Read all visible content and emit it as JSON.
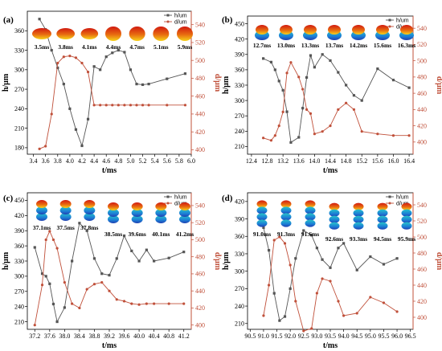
{
  "colors": {
    "h_series": "#555555",
    "d_series": "#c0503a",
    "axis": "#000000",
    "d_axis": "#c0503a"
  },
  "chart_data": [
    {
      "type": "line",
      "panel_label": "(a)",
      "xlabel": "t/ms",
      "ylabel_left": "h/μm",
      "ylabel_right": "d/μm",
      "xlim": [
        3.3,
        6.0
      ],
      "xticks": [
        "3.4",
        "3.6",
        "3.8",
        "4.0",
        "4.2",
        "4.4",
        "4.6",
        "4.8",
        "5.0",
        "5.2",
        "5.4",
        "5.6",
        "5.8",
        "6.0"
      ],
      "xtick_values": [
        3.4,
        3.6,
        3.8,
        4.0,
        4.2,
        4.4,
        4.6,
        4.8,
        5.0,
        5.2,
        5.4,
        5.6,
        5.8,
        6.0
      ],
      "ylim_left": [
        170,
        390
      ],
      "yticks_left": [
        "180",
        "210",
        "240",
        "270",
        "300",
        "330",
        "360"
      ],
      "ytick_values_left": [
        180,
        210,
        240,
        270,
        300,
        330,
        360
      ],
      "ylim_right": [
        395,
        555
      ],
      "yticks_right": [
        "400",
        "420",
        "440",
        "460",
        "480",
        "500",
        "520",
        "540"
      ],
      "ytick_values_right": [
        400,
        420,
        440,
        460,
        480,
        500,
        520,
        540
      ],
      "legend": [
        {
          "name": "h/um"
        },
        {
          "name": "d/um"
        }
      ],
      "series": [
        {
          "name": "h/um",
          "axis": "left",
          "marker": "square",
          "x": [
            3.5,
            3.6,
            3.7,
            3.8,
            3.9,
            4.0,
            4.1,
            4.2,
            4.3,
            4.4,
            4.5,
            4.6,
            4.7,
            4.8,
            4.9,
            5.0,
            5.1,
            5.2,
            5.3,
            5.6,
            5.9
          ],
          "y": [
            378,
            362,
            330,
            303,
            278,
            240,
            208,
            183,
            224,
            305,
            300,
            320,
            326,
            330,
            327,
            300,
            278,
            277,
            278,
            286,
            294
          ]
        },
        {
          "name": "d/um",
          "axis": "right",
          "marker": "circle",
          "x": [
            3.5,
            3.6,
            3.7,
            3.8,
            3.9,
            4.0,
            4.1,
            4.2,
            4.3,
            4.4,
            4.5,
            4.6,
            4.7,
            4.8,
            4.9,
            5.0,
            5.1,
            5.2,
            5.3,
            5.6,
            5.9
          ],
          "y": [
            401,
            404,
            440,
            497,
            504,
            505,
            503,
            497,
            487,
            450,
            450,
            450,
            450,
            450,
            450,
            450,
            450,
            450,
            450,
            450,
            450
          ]
        }
      ],
      "snapshots": [
        "3.5ms",
        "3.8ms",
        "4.1ms",
        "4.4ms",
        "4.7ms",
        "5.1ms",
        "5.9ms"
      ]
    },
    {
      "type": "line",
      "panel_label": "(b)",
      "xlabel": "t/ms",
      "ylabel_left": "h/μm",
      "ylabel_right": "d/μm",
      "xlim": [
        12.3,
        16.5
      ],
      "xticks": [
        "12.4",
        "12.8",
        "13.2",
        "13.6",
        "14.0",
        "14.4",
        "14.8",
        "15.2",
        "15.6",
        "16.0",
        "16.4"
      ],
      "xtick_values": [
        12.4,
        12.8,
        13.2,
        13.6,
        14.0,
        14.4,
        14.8,
        15.2,
        15.6,
        16.0,
        16.4
      ],
      "ylim_left": [
        195,
        465
      ],
      "yticks_left": [
        "210",
        "240",
        "270",
        "300",
        "330",
        "360",
        "390",
        "420",
        "450"
      ],
      "ytick_values_left": [
        210,
        240,
        270,
        300,
        330,
        360,
        390,
        420,
        450
      ],
      "ylim_right": [
        385,
        555
      ],
      "yticks_right": [
        "400",
        "420",
        "440",
        "460",
        "480",
        "500",
        "520",
        "540"
      ],
      "ytick_values_right": [
        400,
        420,
        440,
        460,
        480,
        500,
        520,
        540
      ],
      "legend": [
        {
          "name": "h/um"
        },
        {
          "name": "d/um"
        }
      ],
      "series": [
        {
          "name": "h/um",
          "axis": "left",
          "marker": "square",
          "x": [
            12.7,
            12.9,
            13.0,
            13.1,
            13.2,
            13.3,
            13.4,
            13.6,
            13.7,
            13.8,
            13.9,
            14.0,
            14.2,
            14.4,
            14.6,
            14.8,
            15.0,
            15.2,
            15.6,
            16.0,
            16.4
          ],
          "y": [
            382,
            375,
            360,
            338,
            320,
            278,
            218,
            228,
            285,
            345,
            388,
            365,
            390,
            378,
            355,
            330,
            310,
            300,
            362,
            340,
            325
          ]
        },
        {
          "name": "d/um",
          "axis": "right",
          "marker": "circle",
          "x": [
            12.7,
            12.9,
            13.0,
            13.1,
            13.2,
            13.3,
            13.4,
            13.6,
            13.7,
            13.8,
            13.9,
            14.0,
            14.2,
            14.4,
            14.6,
            14.8,
            15.0,
            15.2,
            15.6,
            16.0,
            16.4
          ],
          "y": [
            405,
            402,
            408,
            420,
            437,
            485,
            498,
            480,
            465,
            440,
            435,
            410,
            413,
            420,
            440,
            448,
            440,
            413,
            410,
            408,
            408
          ]
        }
      ],
      "snapshots": [
        "12.7ms",
        "13.0ms",
        "13.3ms",
        "13.7ms",
        "14.2ms",
        "15.6ms",
        "16.3ms"
      ]
    },
    {
      "type": "line",
      "panel_label": "(c)",
      "xlabel": "t/ms",
      "ylabel_left": "h/μm",
      "ylabel_right": "d/μm",
      "xlim": [
        37.0,
        41.4
      ],
      "xticks": [
        "37.2",
        "37.6",
        "38.0",
        "38.4",
        "38.8",
        "39.2",
        "39.6",
        "40.0",
        "40.4",
        "40.8",
        "41.2"
      ],
      "xtick_values": [
        37.2,
        37.6,
        38.0,
        38.4,
        38.8,
        39.2,
        39.6,
        40.0,
        40.4,
        40.8,
        41.2
      ],
      "ylim_left": [
        195,
        465
      ],
      "yticks_left": [
        "210",
        "240",
        "270",
        "300",
        "330",
        "360",
        "390",
        "420",
        "450"
      ],
      "ytick_values_left": [
        210,
        240,
        270,
        300,
        330,
        360,
        390,
        420,
        450
      ],
      "ylim_right": [
        395,
        555
      ],
      "yticks_right": [
        "400",
        "420",
        "440",
        "460",
        "480",
        "500",
        "520",
        "540"
      ],
      "ytick_values_right": [
        400,
        420,
        440,
        460,
        480,
        500,
        520,
        540
      ],
      "legend": [
        {
          "name": "h/um"
        },
        {
          "name": "d/um"
        }
      ],
      "series": [
        {
          "name": "h/um",
          "axis": "left",
          "marker": "square",
          "x": [
            37.2,
            37.4,
            37.5,
            37.6,
            37.7,
            37.8,
            38.0,
            38.2,
            38.4,
            38.6,
            38.8,
            39.0,
            39.2,
            39.4,
            39.6,
            39.8,
            40.0,
            40.2,
            40.4,
            40.8,
            41.2
          ],
          "y": [
            357,
            305,
            300,
            285,
            245,
            210,
            238,
            330,
            405,
            390,
            335,
            305,
            302,
            335,
            380,
            350,
            330,
            352,
            330,
            336,
            348
          ]
        },
        {
          "name": "d/um",
          "axis": "right",
          "marker": "circle",
          "x": [
            37.2,
            37.4,
            37.5,
            37.6,
            37.7,
            37.8,
            38.0,
            38.2,
            38.4,
            38.6,
            38.8,
            39.0,
            39.2,
            39.4,
            39.6,
            39.8,
            40.0,
            40.2,
            40.4,
            40.8,
            41.2
          ],
          "y": [
            400,
            447,
            500,
            510,
            500,
            490,
            450,
            425,
            420,
            442,
            448,
            450,
            440,
            430,
            428,
            425,
            424,
            425,
            425,
            425,
            425
          ]
        }
      ],
      "snapshots": [
        "37.1ms",
        "37.5ms",
        "37.8ms",
        "38.5ms",
        "39.6ms",
        "40.1ms",
        "41.2ms"
      ]
    },
    {
      "type": "line",
      "panel_label": "(d)",
      "xlabel": "t/ms",
      "ylabel_left": "h/μm",
      "ylabel_right": "d/μm",
      "xlim": [
        90.4,
        96.6
      ],
      "xticks": [
        "90.5",
        "91.0",
        "91.5",
        "92.0",
        "92.5",
        "93.0",
        "93.5",
        "94.0",
        "94.5",
        "95.0",
        "95.5",
        "96.0",
        "96.5"
      ],
      "xtick_values": [
        90.5,
        91.0,
        91.5,
        92.0,
        92.5,
        93.0,
        93.5,
        94.0,
        94.5,
        95.0,
        95.5,
        96.0,
        96.5
      ],
      "ylim_left": [
        200,
        435
      ],
      "yticks_left": [
        "210",
        "240",
        "270",
        "300",
        "330",
        "360",
        "390",
        "420"
      ],
      "ytick_values_left": [
        210,
        240,
        270,
        300,
        330,
        360,
        390,
        420
      ],
      "ylim_right": [
        385,
        555
      ],
      "yticks_right": [
        "400",
        "420",
        "440",
        "460",
        "480",
        "500",
        "520",
        "540"
      ],
      "ytick_values_right": [
        400,
        420,
        440,
        460,
        480,
        500,
        520,
        540
      ],
      "legend": [
        {
          "name": "h/um"
        },
        {
          "name": "d/um"
        }
      ],
      "series": [
        {
          "name": "h/um",
          "axis": "left",
          "marker": "square",
          "x": [
            91.0,
            91.2,
            91.4,
            91.6,
            91.8,
            92.0,
            92.2,
            92.5,
            92.8,
            93.0,
            93.2,
            93.5,
            93.8,
            94.0,
            94.5,
            95.0,
            95.5,
            96.0
          ],
          "y": [
            375,
            336,
            262,
            215,
            222,
            270,
            322,
            370,
            362,
            340,
            320,
            306,
            340,
            348,
            302,
            325,
            312,
            322
          ]
        },
        {
          "name": "d/um",
          "axis": "right",
          "marker": "circle",
          "x": [
            91.0,
            91.2,
            91.4,
            91.6,
            91.8,
            92.0,
            92.2,
            92.5,
            92.8,
            93.0,
            93.2,
            93.5,
            93.8,
            94.0,
            94.5,
            95.0,
            95.5,
            96.0
          ],
          "y": [
            402,
            440,
            496,
            500,
            492,
            465,
            420,
            383,
            386,
            430,
            448,
            445,
            420,
            402,
            405,
            425,
            418,
            407
          ]
        }
      ],
      "snapshots": [
        "91.0ms",
        "91.3ms",
        "91.6ms",
        "92.6ms",
        "93.3ms",
        "94.5ms",
        "95.9ms"
      ]
    }
  ]
}
